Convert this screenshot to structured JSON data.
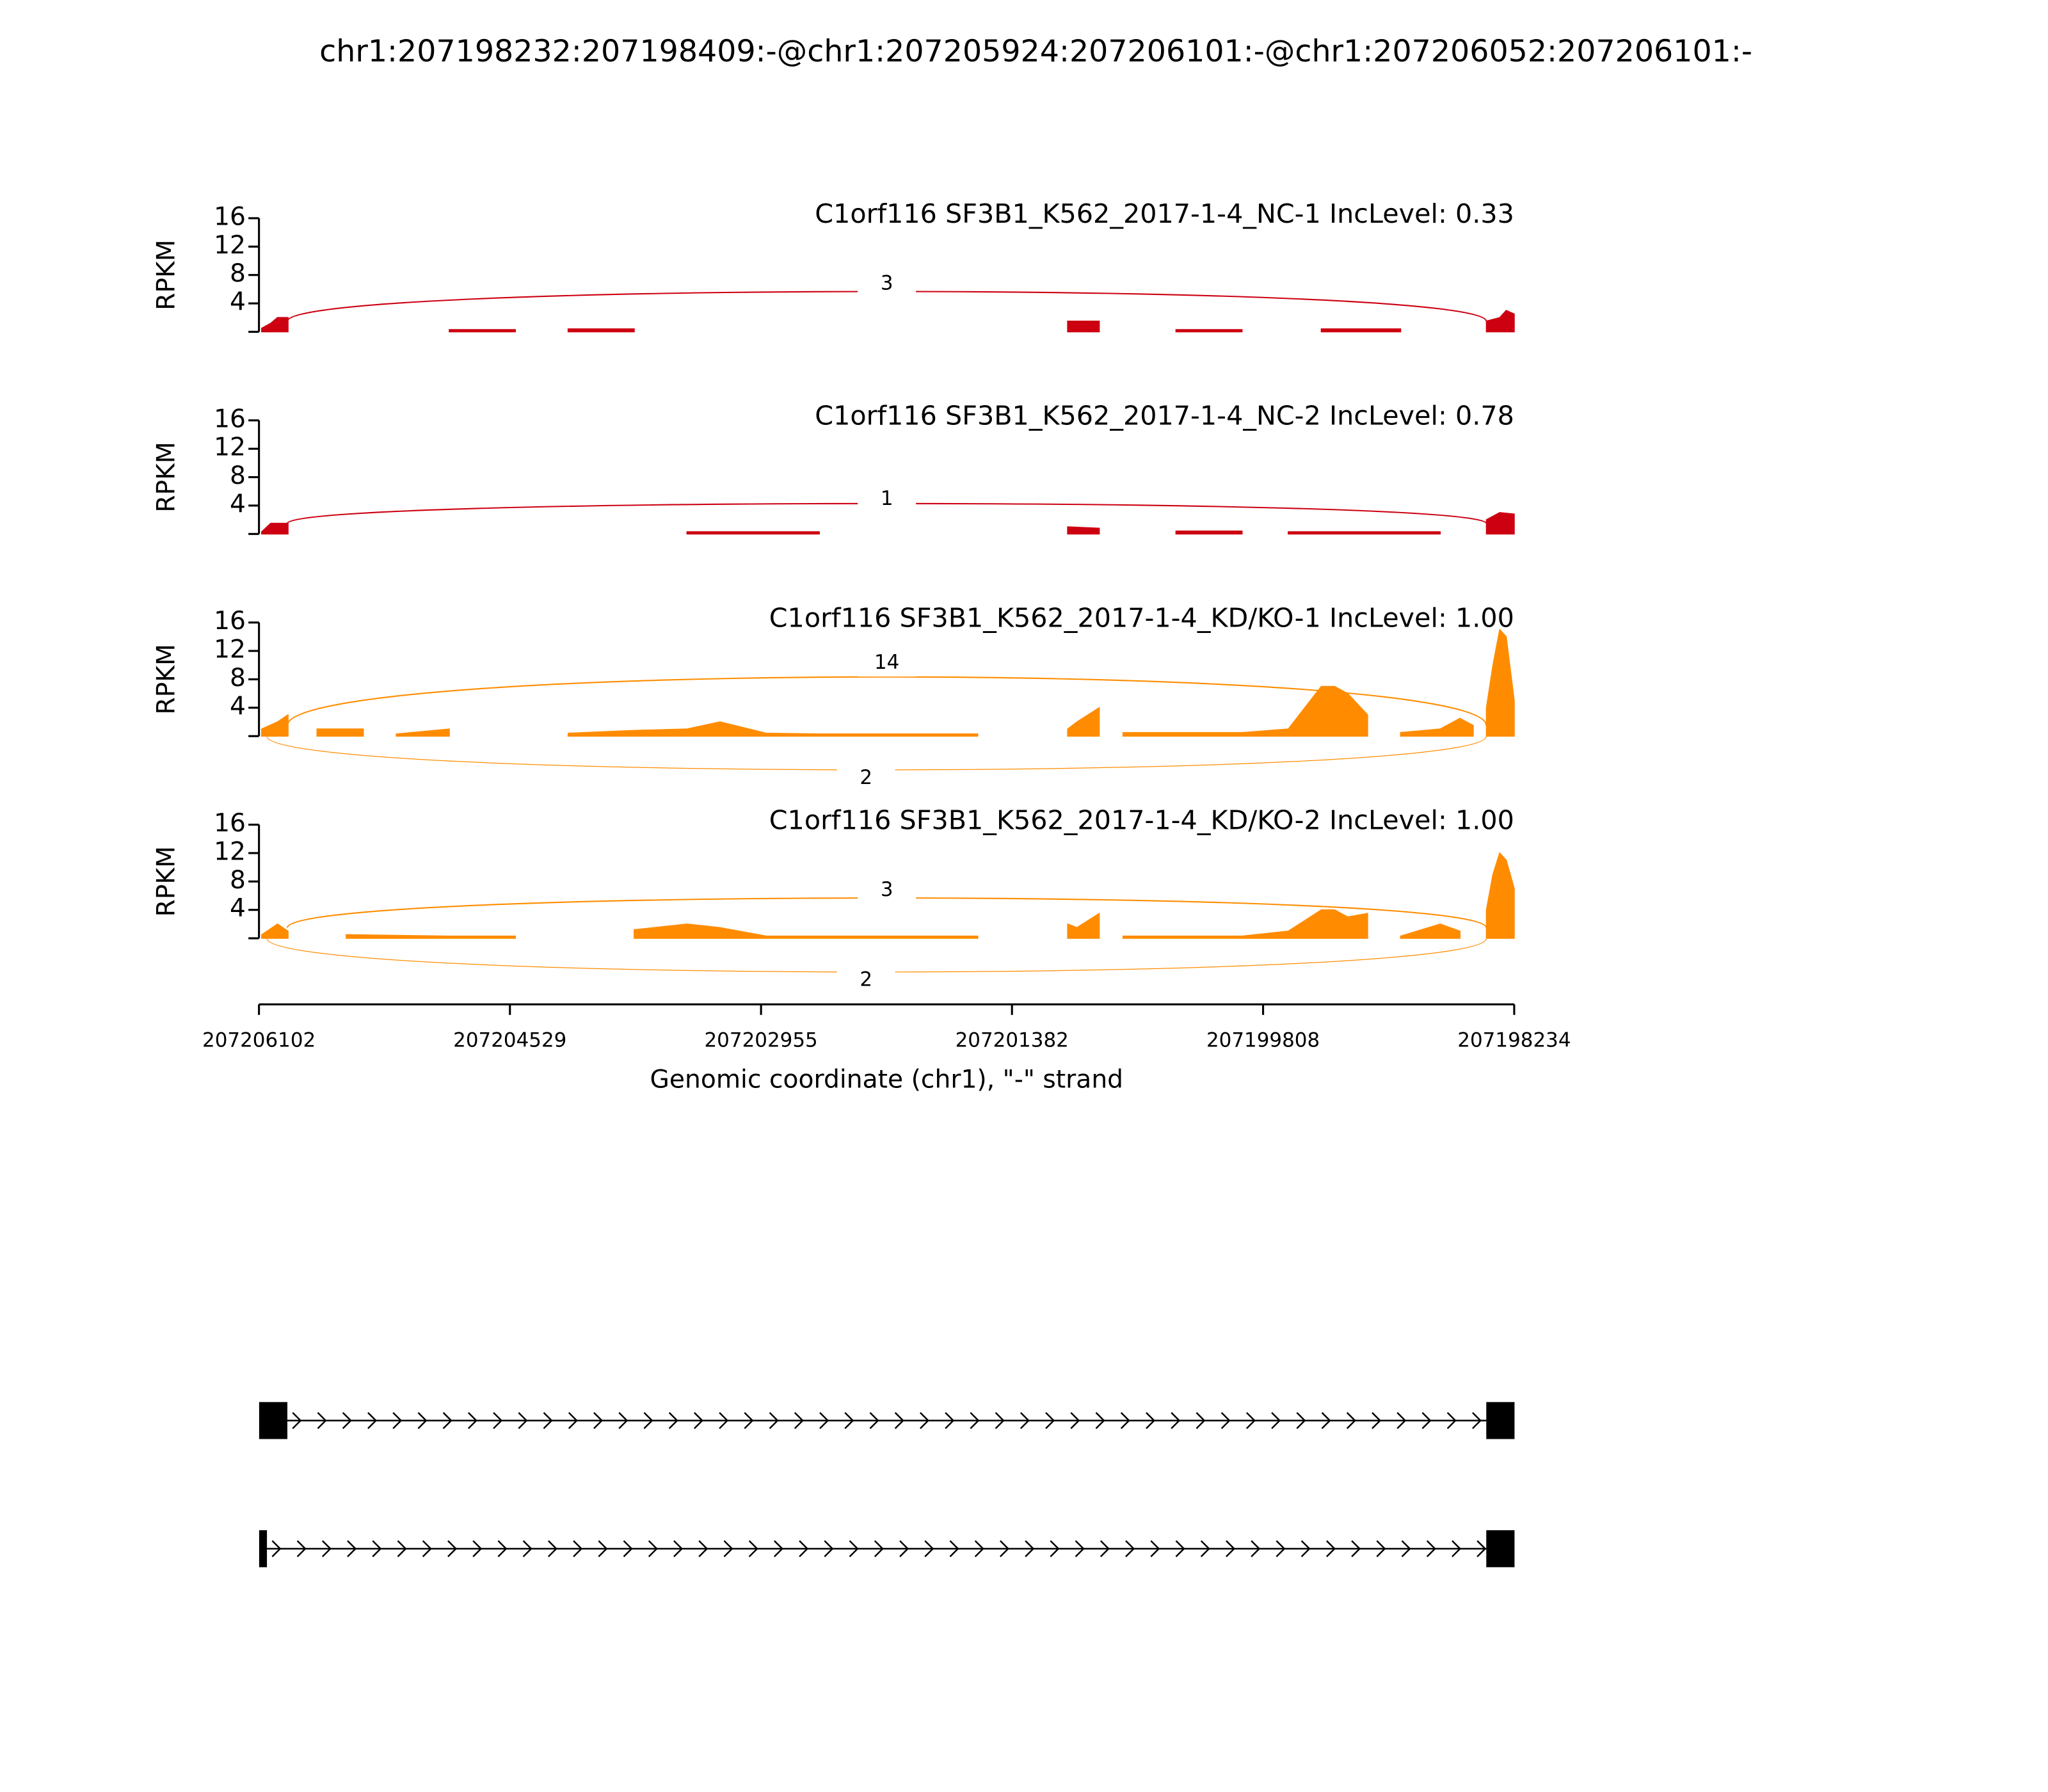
{
  "title": "chr1:207198232:207198409:-@chr1:207205924:207206101:-@chr1:207206052:207206101:-",
  "chart_data": [
    {
      "type": "area",
      "title": "C1orf116 SF3B1_K562_2017-1-4_NC-1 IncLevel: 0.33",
      "ylabel": "RPKM",
      "color": "#cc0011",
      "ylim": [
        0,
        16
      ],
      "yticks": [
        4,
        8,
        12,
        16
      ],
      "x": [
        207206085,
        207206028,
        207205986,
        207205920,
        null,
        207204909,
        207204495,
        null,
        207204164,
        207203750,
        null,
        207201033,
        207200835,
        null,
        207200354,
        207199940,
        null,
        207199443,
        207198946,
        null,
        207198408,
        207198325,
        207198284,
        207198234
      ],
      "values": [
        0.5,
        1.2,
        2,
        2,
        null,
        0.3,
        0.3,
        null,
        0.4,
        0.4,
        null,
        1.5,
        1.5,
        null,
        0.3,
        0.3,
        null,
        0.4,
        0.4,
        null,
        1.5,
        2,
        3,
        2.5
      ],
      "junctions": [
        {
          "start": 207205924,
          "end": 207198409,
          "count": 3
        }
      ]
    },
    {
      "type": "area",
      "title": "C1orf116 SF3B1_K562_2017-1-4_NC-2 IncLevel: 0.78",
      "ylabel": "RPKM",
      "color": "#cc0011",
      "ylim": [
        0,
        16
      ],
      "yticks": [
        4,
        8,
        12,
        16
      ],
      "x": [
        207206085,
        207206028,
        207205920,
        null,
        207203419,
        207202590,
        null,
        207201033,
        207200835,
        null,
        207200354,
        207199940,
        null,
        207199650,
        207198698,
        null,
        207198408,
        207198325,
        207198234
      ],
      "values": [
        0.3,
        1.5,
        1.5,
        null,
        0.3,
        0.3,
        null,
        1,
        0.8,
        null,
        0.4,
        0.4,
        null,
        0.3,
        0.3,
        null,
        2,
        3,
        2.8
      ],
      "junctions": [
        {
          "start": 207205924,
          "end": 207198409,
          "count": 1
        }
      ]
    },
    {
      "type": "area",
      "title": "C1orf116 SF3B1_K562_2017-1-4_KD/KO-1 IncLevel: 1.00",
      "ylabel": "RPKM",
      "color": "#ff8c00",
      "ylim": [
        0,
        16
      ],
      "yticks": [
        4,
        8,
        12,
        16
      ],
      "x": [
        207206085,
        207205986,
        207205920,
        null,
        207205738,
        207205448,
        null,
        207205241,
        207204909,
        null,
        207204164,
        207203750,
        207203419,
        207203212,
        207202922,
        207202590,
        207201928,
        207201597,
        null,
        207201033,
        207200975,
        207200835,
        null,
        207200686,
        207199940,
        207199650,
        207199443,
        207199360,
        207199278,
        207199153,
        null,
        207198946,
        207198698,
        207198574,
        207198491,
        null,
        207198408,
        207198367,
        207198325,
        207198284,
        207198234
      ],
      "values": [
        1,
        2,
        3,
        null,
        1,
        1,
        null,
        0.3,
        1,
        null,
        0.4,
        0.8,
        1,
        2,
        0.4,
        0.3,
        0.3,
        0.3,
        null,
        1,
        2,
        4,
        null,
        0.5,
        0.5,
        1,
        7,
        7,
        6,
        3,
        null,
        0.5,
        1,
        2.5,
        1.5,
        null,
        4,
        10,
        15,
        14,
        5
      ],
      "junctions": [
        {
          "start": 207205924,
          "end": 207198409,
          "count": 14
        },
        {
          "start": 207206052,
          "end": 207198409,
          "count": 2
        }
      ]
    },
    {
      "type": "area",
      "title": "C1orf116 SF3B1_K562_2017-1-4_KD/KO-2 IncLevel: 1.00",
      "ylabel": "RPKM",
      "color": "#ff8c00",
      "ylim": [
        0,
        16
      ],
      "yticks": [
        4,
        8,
        12,
        16
      ],
      "x": [
        207206085,
        207205986,
        207205920,
        null,
        207205555,
        207204909,
        207204495,
        null,
        207203750,
        207203419,
        207203212,
        207202922,
        207201928,
        207201597,
        null,
        207201033,
        207200975,
        207200835,
        null,
        207200686,
        207199940,
        207199650,
        207199443,
        207199360,
        207199278,
        207199153,
        null,
        207198946,
        207198698,
        207198574,
        null,
        207198408,
        207198367,
        207198325,
        207198284,
        207198234
      ],
      "values": [
        0.5,
        2,
        1,
        null,
        0.5,
        0.3,
        0.3,
        null,
        1.2,
        2,
        1.5,
        0.3,
        0.3,
        0.3,
        null,
        2,
        1.5,
        3.5,
        null,
        0.3,
        0.3,
        1,
        4,
        4,
        3,
        3.5,
        null,
        0.3,
        2,
        1,
        null,
        4,
        9,
        12,
        11,
        7
      ],
      "junctions": [
        {
          "start": 207205924,
          "end": 207198409,
          "count": 3
        },
        {
          "start": 207206052,
          "end": 207198409,
          "count": 2
        }
      ]
    }
  ],
  "x_axis": {
    "label": "Genomic coordinate (chr1), \"-\" strand",
    "xlim": [
      207206102,
      207198234
    ],
    "xticks": [
      207206102,
      207204529,
      207202955,
      207201382,
      207199808,
      207198234
    ]
  },
  "transcripts": [
    {
      "exons": [
        [
          207206101,
          207205924
        ],
        [
          207198409,
          207198232
        ]
      ]
    },
    {
      "exons": [
        [
          207206101,
          207206052
        ],
        [
          207198409,
          207198232
        ]
      ]
    }
  ]
}
